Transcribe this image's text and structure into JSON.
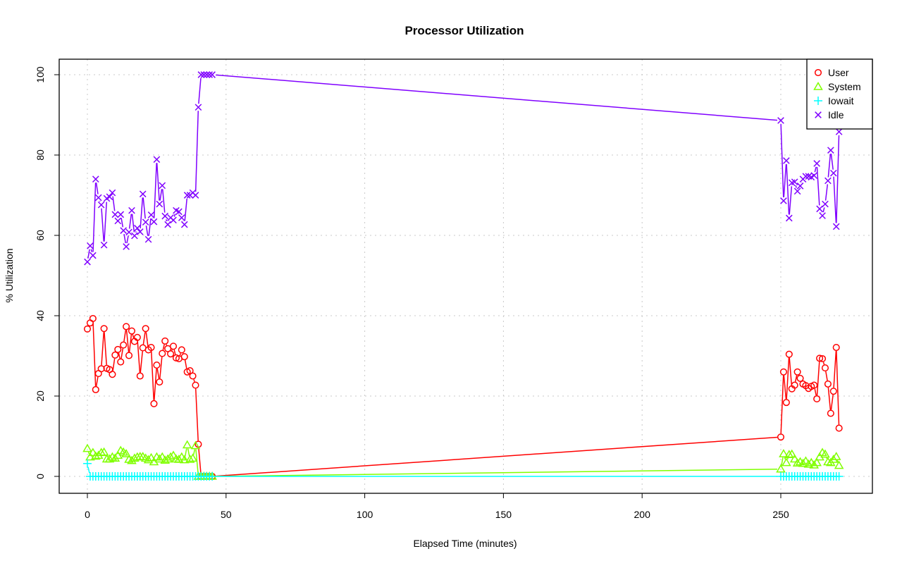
{
  "chart_data": {
    "type": "line",
    "title": "Processor Utilization",
    "xlabel": "Elapsed Time (minutes)",
    "ylabel": "% Utilization",
    "xlim": [
      -10,
      280
    ],
    "ylim": [
      -4,
      104
    ],
    "xticks": [
      0,
      50,
      100,
      150,
      200,
      250
    ],
    "yticks": [
      0,
      20,
      40,
      60,
      80,
      100
    ],
    "grid": true,
    "legend_position": "top-right",
    "x": [
      0,
      1,
      2,
      3,
      4,
      5,
      6,
      7,
      8,
      9,
      10,
      11,
      12,
      13,
      14,
      15,
      16,
      17,
      18,
      19,
      20,
      21,
      22,
      23,
      24,
      25,
      26,
      27,
      28,
      29,
      30,
      31,
      32,
      33,
      34,
      35,
      36,
      37,
      38,
      39,
      40,
      41,
      42,
      43,
      44,
      45,
      250,
      251,
      252,
      253,
      254,
      255,
      256,
      257,
      258,
      259,
      260,
      261,
      262,
      263,
      264,
      265,
      266,
      267,
      268,
      269,
      270,
      271
    ],
    "series": [
      {
        "name": "User",
        "color": "#ff0000",
        "marker": "circle",
        "values": [
          36.7,
          38.2,
          39.3,
          21.6,
          25.6,
          26.8,
          36.8,
          26.9,
          26.6,
          25.4,
          30.2,
          31.6,
          28.5,
          32.7,
          37.3,
          30.1,
          36.2,
          33.6,
          34.6,
          25.0,
          32.0,
          36.8,
          31.5,
          32.1,
          18.1,
          27.7,
          23.5,
          30.6,
          33.7,
          31.8,
          30.5,
          32.4,
          29.5,
          29.3,
          31.5,
          29.8,
          26.0,
          26.3,
          25.0,
          22.7,
          8.0,
          0,
          0,
          0,
          0,
          0,
          9.8,
          26.0,
          18.4,
          30.4,
          21.8,
          22.7,
          26.0,
          24.4,
          23.0,
          22.6,
          21.9,
          22.4,
          22.7,
          19.3,
          29.4,
          29.3,
          27.0,
          23.0,
          15.7,
          21.2,
          32.1,
          12.0
        ]
      },
      {
        "name": "System",
        "color": "#80ff00",
        "marker": "triangle",
        "values": [
          6.9,
          4.8,
          5.9,
          5.0,
          5.2,
          5.9,
          6.0,
          4.3,
          4.3,
          4.8,
          4.5,
          5.2,
          6.4,
          6.0,
          5.6,
          4.2,
          3.9,
          4.5,
          4.8,
          4.9,
          4.9,
          4.5,
          4.1,
          4.6,
          3.6,
          4.8,
          4.3,
          4.8,
          4.0,
          4.3,
          4.8,
          5.2,
          4.3,
          4.2,
          4.8,
          4.1,
          7.8,
          4.2,
          4.5,
          7.6,
          0,
          0,
          0,
          0,
          0,
          0,
          1.8,
          5.6,
          3.4,
          5.4,
          5.5,
          4.3,
          3.3,
          3.6,
          3.2,
          3.8,
          3.0,
          3.4,
          2.8,
          3.4,
          4.8,
          5.9,
          5.5,
          3.6,
          3.4,
          4.2,
          4.9,
          2.7
        ]
      },
      {
        "name": "Iowait",
        "color": "#00ffff",
        "marker": "plus",
        "values": [
          3.2,
          0,
          0,
          0,
          0,
          0,
          0,
          0,
          0,
          0,
          0,
          0,
          0,
          0,
          0,
          0,
          0,
          0,
          0,
          0,
          0,
          0,
          0,
          0,
          0,
          0,
          0,
          0,
          0,
          0,
          0,
          0,
          0,
          0,
          0,
          0,
          0,
          0,
          0,
          0,
          0,
          0,
          0,
          0,
          0,
          0,
          0,
          0,
          0,
          0,
          0,
          0,
          0,
          0,
          0,
          0,
          0,
          0,
          0,
          0,
          0,
          0,
          0,
          0,
          0,
          0,
          0,
          0
        ]
      },
      {
        "name": "Idle",
        "color": "#8000ff",
        "marker": "cross",
        "values": [
          53.4,
          57.4,
          55.0,
          74.0,
          69.4,
          67.6,
          57.6,
          69.2,
          69.6,
          70.6,
          65.2,
          63.6,
          65.2,
          61.2,
          57.2,
          60.8,
          66.2,
          59.9,
          61.8,
          60.9,
          70.3,
          63.3,
          59.0,
          65.1,
          63.4,
          78.9,
          67.8,
          72.4,
          64.8,
          62.7,
          64.4,
          63.8,
          66.2,
          65.9,
          64.4,
          62.7,
          70.0,
          70.0,
          70.6,
          70.0,
          91.9,
          100,
          100,
          100,
          100,
          100,
          88.6,
          68.6,
          78.6,
          64.3,
          73.1,
          73.3,
          71.0,
          72.3,
          74.0,
          74.7,
          74.7,
          74.5,
          74.9,
          77.9,
          66.6,
          64.9,
          67.8,
          73.6,
          81.2,
          75.5,
          62.2,
          85.8
        ]
      }
    ]
  }
}
